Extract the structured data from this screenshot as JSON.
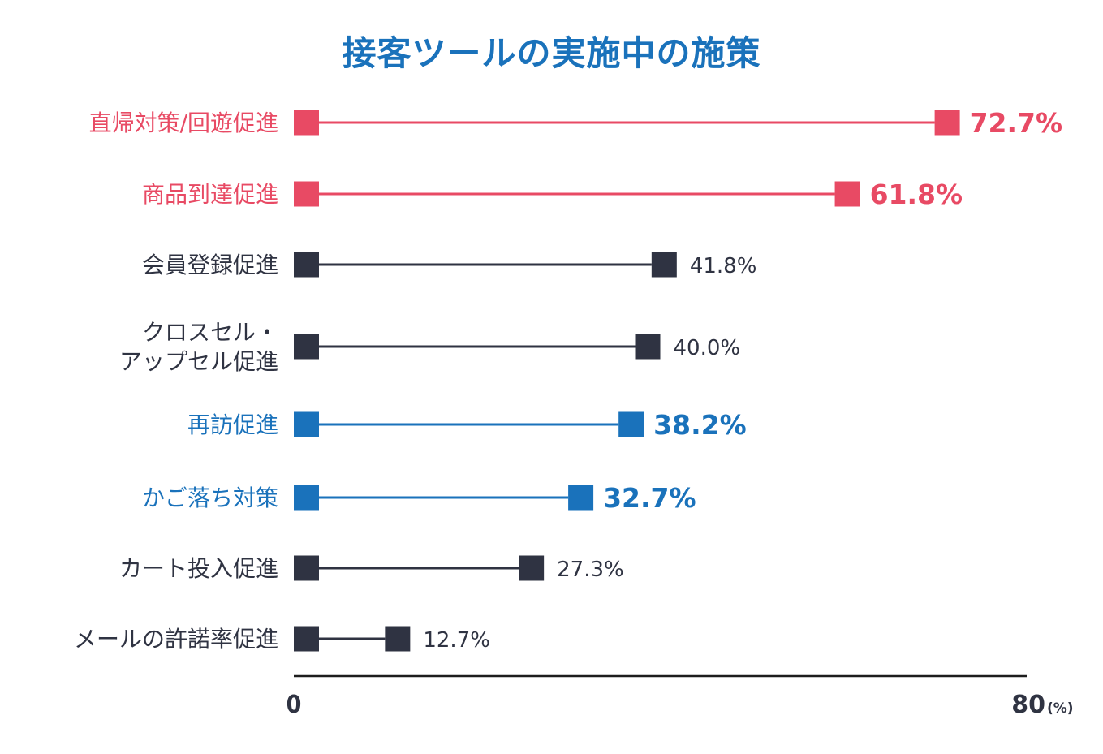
{
  "chart_data": {
    "type": "dumbbell-bar",
    "title": "接客ツールの実施中の施策",
    "xlabel": "",
    "ylabel": "",
    "xlim": [
      0,
      80
    ],
    "x_ticks": [
      "0",
      "80"
    ],
    "x_unit": "(%)",
    "grid": false,
    "categories": [
      {
        "label_lines": [
          "直帰対策/回遊促進"
        ],
        "value": 72.7,
        "value_label": "72.7%",
        "highlight": "red"
      },
      {
        "label_lines": [
          "商品到達促進"
        ],
        "value": 61.8,
        "value_label": "61.8%",
        "highlight": "red"
      },
      {
        "label_lines": [
          "会員登録促進"
        ],
        "value": 41.8,
        "value_label": "41.8%",
        "highlight": "none"
      },
      {
        "label_lines": [
          "クロスセル・",
          "アップセル促進"
        ],
        "value": 40.0,
        "value_label": "40.0%",
        "highlight": "none"
      },
      {
        "label_lines": [
          "再訪促進"
        ],
        "value": 38.2,
        "value_label": "38.2%",
        "highlight": "blue"
      },
      {
        "label_lines": [
          "かご落ち対策"
        ],
        "value": 32.7,
        "value_label": "32.7%",
        "highlight": "blue"
      },
      {
        "label_lines": [
          "カート投入促進"
        ],
        "value": 27.3,
        "value_label": "27.3%",
        "highlight": "none"
      },
      {
        "label_lines": [
          "メールの許諾率促進"
        ],
        "value": 12.7,
        "value_label": "12.7%",
        "highlight": "none"
      }
    ]
  },
  "colors": {
    "red": "#e84a64",
    "blue": "#1a72bb",
    "none": "#2f3342",
    "title": "#1a72bb",
    "axis": "#1d1d1d"
  }
}
